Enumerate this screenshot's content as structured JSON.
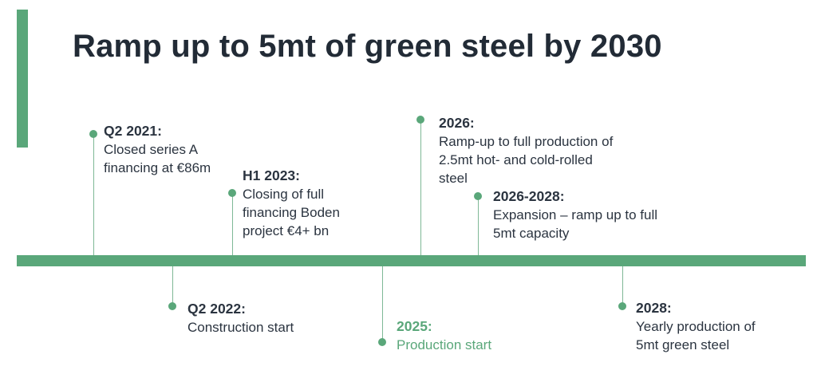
{
  "title": "Ramp up to 5mt of green steel by 2030",
  "colors": {
    "accent": "#5aa77a",
    "text": "#2b3440",
    "title": "#222b36"
  },
  "events": [
    {
      "date": "Q2 2021:",
      "description": "Closed series A\nfinancing at €86m",
      "position": "above"
    },
    {
      "date": "Q2 2022:",
      "description": "Construction start",
      "position": "below"
    },
    {
      "date": "H1 2023:",
      "description": "Closing of full\nfinancing Boden\nproject €4+ bn",
      "position": "above"
    },
    {
      "date": "2025:",
      "description": "Production start",
      "position": "below",
      "highlight": true
    },
    {
      "date": "2026:",
      "description": "Ramp-up to full production of\n2.5mt hot- and cold-rolled\nsteel",
      "position": "above"
    },
    {
      "date": "2026-2028:",
      "description": "Expansion – ramp up to full\n5mt capacity",
      "position": "above"
    },
    {
      "date": "2028:",
      "description": "Yearly production of\n5mt green steel",
      "position": "below"
    }
  ]
}
